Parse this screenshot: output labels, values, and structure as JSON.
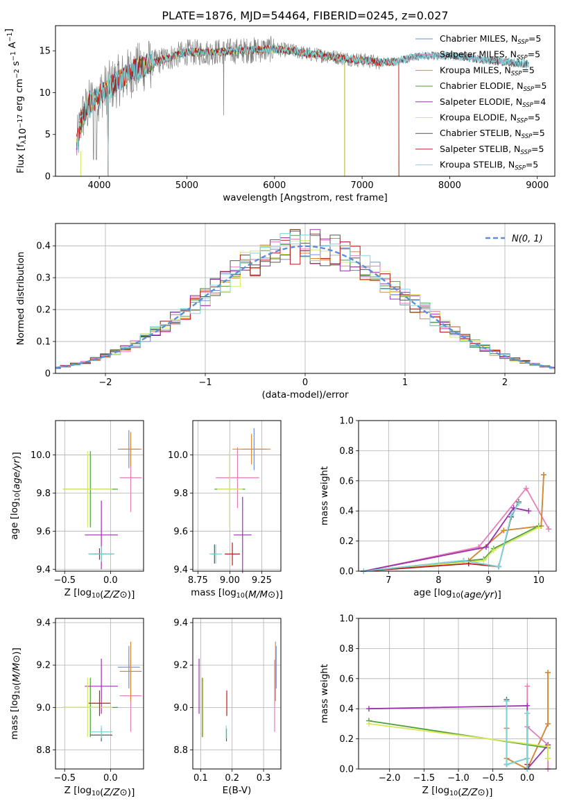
{
  "figure_title": "PLATE=1876, MJD=54464, FIBERID=0245, z=0.027",
  "colors": {
    "Chabrier MILES": "#6f8fd8",
    "Salpeter MILES": "#e87db6",
    "Kroupa MILES": "#d98a2e",
    "Chabrier ELODIE": "#4f9e3a",
    "Salpeter ELODIE": "#9b2fae",
    "Kroupa ELODIE": "#d7e85a",
    "Chabrier STELIB": "#555555",
    "Salpeter STELIB": "#c01818",
    "Kroupa STELIB": "#7fd6d8",
    "gaussian": "#5b8fd9"
  },
  "chart_data": [
    {
      "id": "spectrum",
      "type": "line",
      "xlabel": "wavelength [Angstrom, rest frame]",
      "ylabel": "Flux [f_λ10^-17 erg cm^-2 s^-1 A^-1]",
      "xlim": [
        3500,
        9200
      ],
      "ylim": [
        0,
        18
      ],
      "xticks": [
        4000,
        5000,
        6000,
        7000,
        8000,
        9000
      ],
      "yticks": [
        0,
        5,
        10,
        15
      ],
      "grid": false,
      "legend_position": "top-right",
      "legend": [
        {
          "label": "Chabrier MILES",
          "nssp": "5"
        },
        {
          "label": "Salpeter MILES",
          "nssp": "5"
        },
        {
          "label": "Kroupa MILES",
          "nssp": "5"
        },
        {
          "label": "Chabrier ELODIE",
          "nssp": "5"
        },
        {
          "label": "Salpeter ELODIE",
          "nssp": "4"
        },
        {
          "label": "Kroupa ELODIE",
          "nssp": "5"
        },
        {
          "label": "Chabrier STELIB",
          "nssp": "5"
        },
        {
          "label": "Salpeter STELIB",
          "nssp": "5"
        },
        {
          "label": "Kroupa STELIB",
          "nssp": "5"
        }
      ],
      "continuum": {
        "x": [
          3740,
          3800,
          3900,
          4000,
          4100,
          4200,
          4400,
          4600,
          4800,
          5000,
          5200,
          5400,
          5600,
          5800,
          6000,
          6200,
          6400,
          6600,
          6800,
          7000,
          7200,
          7400,
          7600,
          7800,
          8000,
          8200,
          8400,
          8600,
          8800,
          8900
        ],
        "y": [
          3.5,
          7.0,
          8.8,
          9.8,
          10.6,
          11.3,
          12.7,
          13.5,
          14.2,
          14.8,
          14.8,
          14.9,
          15.0,
          15.1,
          15.2,
          15.0,
          14.6,
          14.4,
          14.1,
          13.9,
          13.6,
          13.7,
          14.3,
          14.4,
          14.4,
          14.2,
          13.9,
          13.7,
          13.5,
          13.4
        ]
      }
    },
    {
      "id": "residuals",
      "type": "histogram",
      "xlabel": "(data-model)/error",
      "ylabel": "Normed distribution",
      "xlim": [
        -2.5,
        2.5
      ],
      "ylim": [
        0,
        0.47
      ],
      "xticks": [
        -2,
        -1,
        0,
        1,
        2
      ],
      "yticks": [
        0.0,
        0.1,
        0.2,
        0.3,
        0.4
      ],
      "grid": true,
      "legend_position": "top-right",
      "legend_label": "N(0,1)",
      "bin_width": 0.1
    },
    {
      "id": "age_vs_Z",
      "type": "errorbar",
      "xlabel": "Z [log10(Z/Z⊙)]",
      "ylabel": "age  [log10(age/yr)]",
      "xlim": [
        -0.6,
        0.36
      ],
      "ylim": [
        9.39,
        10.18
      ],
      "xticks": [
        -0.5,
        0.0
      ],
      "yticks": [
        9.4,
        9.6,
        9.8,
        10.0
      ],
      "grid": true,
      "points": [
        {
          "model": "Chabrier MILES",
          "x": 0.2,
          "y": 10.03,
          "xerr": 0.12,
          "yerr": 0.1
        },
        {
          "model": "Salpeter MILES",
          "x": 0.22,
          "y": 9.88,
          "xerr": 0.12,
          "yerr": 0.18
        },
        {
          "model": "Kroupa MILES",
          "x": 0.22,
          "y": 10.03,
          "xerr": 0.12,
          "yerr": 0.09
        },
        {
          "model": "Chabrier ELODIE",
          "x": -0.22,
          "y": 9.82,
          "xerr": 0.3,
          "yerr": 0.2
        },
        {
          "model": "Salpeter ELODIE",
          "x": -0.1,
          "y": 9.58,
          "xerr": 0.18,
          "yerr": 0.18
        },
        {
          "model": "Kroupa ELODIE",
          "x": -0.25,
          "y": 9.82,
          "xerr": 0.27,
          "yerr": 0.2
        },
        {
          "model": "Chabrier STELIB",
          "x": -0.1,
          "y": 9.48,
          "xerr": 0.14,
          "yerr": 0.04
        },
        {
          "model": "Salpeter STELIB",
          "x": -0.12,
          "y": 9.48,
          "xerr": 0.07,
          "yerr": 0.03
        },
        {
          "model": "Kroupa STELIB",
          "x": -0.1,
          "y": 9.48,
          "xerr": 0.14,
          "yerr": 0.04
        }
      ]
    },
    {
      "id": "age_vs_mass",
      "type": "errorbar",
      "xlabel": "mass [log10(M/M⊙)]",
      "ylabel": "",
      "xlim": [
        8.71,
        9.4
      ],
      "ylim": [
        9.39,
        10.18
      ],
      "xticks": [
        8.75,
        9.0,
        9.25
      ],
      "yticks": [
        9.4,
        9.6,
        9.8,
        10.0
      ],
      "grid": true,
      "points": [
        {
          "model": "Chabrier MILES",
          "x": 9.19,
          "y": 10.03,
          "xerr": 0.1,
          "yerr": 0.11
        },
        {
          "model": "Salpeter MILES",
          "x": 9.06,
          "y": 9.88,
          "xerr": 0.17,
          "yerr": 0.16
        },
        {
          "model": "Kroupa MILES",
          "x": 9.17,
          "y": 10.03,
          "xerr": 0.15,
          "yerr": 0.08
        },
        {
          "model": "Chabrier ELODIE",
          "x": 9.0,
          "y": 9.82,
          "xerr": 0.12,
          "yerr": 0.2
        },
        {
          "model": "Salpeter ELODIE",
          "x": 9.1,
          "y": 9.58,
          "xerr": 0.07,
          "yerr": 0.2
        },
        {
          "model": "Kroupa ELODIE",
          "x": 9.0,
          "y": 9.82,
          "xerr": 0.1,
          "yerr": 0.2
        },
        {
          "model": "Chabrier STELIB",
          "x": 8.88,
          "y": 9.48,
          "xerr": 0.02,
          "yerr": 0.05
        },
        {
          "model": "Salpeter STELIB",
          "x": 9.02,
          "y": 9.48,
          "xerr": 0.06,
          "yerr": 0.06
        },
        {
          "model": "Kroupa STELIB",
          "x": 8.89,
          "y": 9.48,
          "xerr": 0.05,
          "yerr": 0.05
        }
      ]
    },
    {
      "id": "weight_vs_age",
      "type": "line",
      "xlabel": "age  [log10(age/yr)]",
      "ylabel": "mass weight",
      "xlim": [
        6.4,
        10.35
      ],
      "ylim": [
        0,
        1.0
      ],
      "xticks": [
        7,
        8,
        9,
        10
      ],
      "yticks": [
        0.0,
        0.2,
        0.4,
        0.6,
        0.8,
        1.0
      ],
      "grid": true,
      "series": [
        {
          "model": "Chabrier MILES",
          "x": [
            6.5,
            8.6,
            9.3,
            10.05,
            10.1
          ],
          "y": [
            0.0,
            0.07,
            0.27,
            0.3,
            0.64
          ]
        },
        {
          "model": "Salpeter MILES",
          "x": [
            6.5,
            8.8,
            9.75,
            10.2
          ],
          "y": [
            0.0,
            0.16,
            0.55,
            0.28
          ]
        },
        {
          "model": "Kroupa MILES",
          "x": [
            6.5,
            8.6,
            9.3,
            10.05,
            10.1
          ],
          "y": [
            0.0,
            0.07,
            0.27,
            0.3,
            0.64
          ]
        },
        {
          "model": "Chabrier ELODIE",
          "x": [
            6.5,
            8.9,
            9.1,
            10.0
          ],
          "y": [
            0.0,
            0.08,
            0.15,
            0.3
          ]
        },
        {
          "model": "Salpeter ELODIE",
          "x": [
            6.5,
            8.95,
            9.5,
            9.8
          ],
          "y": [
            0.0,
            0.16,
            0.42,
            0.4
          ]
        },
        {
          "model": "Kroupa ELODIE",
          "x": [
            6.5,
            8.9,
            9.1,
            10.0
          ],
          "y": [
            0.0,
            0.07,
            0.14,
            0.29
          ]
        },
        {
          "model": "Chabrier STELIB",
          "x": [
            6.5,
            8.5,
            9.2,
            9.45,
            9.6
          ],
          "y": [
            0.0,
            0.07,
            0.03,
            0.36,
            0.46
          ]
        },
        {
          "model": "Salpeter STELIB",
          "x": [
            6.5,
            8.6,
            9.2
          ],
          "y": [
            0.0,
            0.05,
            0.03
          ]
        },
        {
          "model": "Kroupa STELIB",
          "x": [
            6.5,
            8.5,
            9.2,
            9.45,
            9.6
          ],
          "y": [
            0.0,
            0.07,
            0.03,
            0.37,
            0.45
          ]
        }
      ]
    },
    {
      "id": "mass_vs_Z",
      "type": "errorbar",
      "xlabel": "Z [log10(Z/Z⊙)]",
      "ylabel": "mass [log10(M/M⊙)]",
      "xlim": [
        -0.6,
        0.36
      ],
      "ylim": [
        8.71,
        9.42
      ],
      "xticks": [
        -0.5,
        0.0
      ],
      "yticks": [
        8.8,
        9.0,
        9.2,
        9.4
      ],
      "grid": true,
      "points": [
        {
          "model": "Chabrier MILES",
          "x": 0.2,
          "y": 9.19,
          "xerr": 0.12,
          "yerr": 0.1
        },
        {
          "model": "Salpeter MILES",
          "x": 0.22,
          "y": 9.055,
          "xerr": 0.12,
          "yerr": 0.17
        },
        {
          "model": "Kroupa MILES",
          "x": 0.22,
          "y": 9.17,
          "xerr": 0.12,
          "yerr": 0.14
        },
        {
          "model": "Chabrier ELODIE",
          "x": -0.22,
          "y": 9.0,
          "xerr": 0.3,
          "yerr": 0.14
        },
        {
          "model": "Salpeter ELODIE",
          "x": -0.1,
          "y": 9.1,
          "xerr": 0.18,
          "yerr": 0.13
        },
        {
          "model": "Kroupa ELODIE",
          "x": -0.25,
          "y": 9.0,
          "xerr": 0.27,
          "yerr": 0.14
        },
        {
          "model": "Chabrier STELIB",
          "x": -0.1,
          "y": 8.87,
          "xerr": 0.12,
          "yerr": 0.03
        },
        {
          "model": "Salpeter STELIB",
          "x": -0.12,
          "y": 9.02,
          "xerr": 0.12,
          "yerr": 0.06
        },
        {
          "model": "Kroupa STELIB",
          "x": -0.1,
          "y": 8.885,
          "xerr": 0.12,
          "yerr": 0.03
        }
      ]
    },
    {
      "id": "mass_vs_ebv",
      "type": "errorbar",
      "xlabel": "E(B-V)",
      "ylabel": "",
      "xlim": [
        0.075,
        0.355
      ],
      "ylim": [
        8.71,
        9.42
      ],
      "xticks": [
        0.1,
        0.2,
        0.3
      ],
      "yticks": [
        8.8,
        9.0,
        9.2,
        9.4
      ],
      "grid": true,
      "points": [
        {
          "model": "Chabrier MILES",
          "x": 0.34,
          "y": 9.19,
          "xerr": 0.0,
          "yerr": 0.1
        },
        {
          "model": "Salpeter MILES",
          "x": 0.335,
          "y": 9.055,
          "xerr": 0.0,
          "yerr": 0.17
        },
        {
          "model": "Kroupa MILES",
          "x": 0.338,
          "y": 9.17,
          "xerr": 0.0,
          "yerr": 0.14
        },
        {
          "model": "Chabrier ELODIE",
          "x": 0.105,
          "y": 9.0,
          "xerr": 0.0,
          "yerr": 0.14
        },
        {
          "model": "Salpeter ELODIE",
          "x": 0.095,
          "y": 9.1,
          "xerr": 0.0,
          "yerr": 0.13
        },
        {
          "model": "Kroupa ELODIE",
          "x": 0.108,
          "y": 9.0,
          "xerr": 0.0,
          "yerr": 0.14
        },
        {
          "model": "Chabrier STELIB",
          "x": 0.182,
          "y": 8.87,
          "xerr": 0.0,
          "yerr": 0.03
        },
        {
          "model": "Salpeter STELIB",
          "x": 0.183,
          "y": 9.02,
          "xerr": 0.0,
          "yerr": 0.06
        },
        {
          "model": "Kroupa STELIB",
          "x": 0.181,
          "y": 8.885,
          "xerr": 0.0,
          "yerr": 0.03
        }
      ]
    },
    {
      "id": "weight_vs_Z",
      "type": "line",
      "xlabel": "Z [log10(Z/Z⊙)]",
      "ylabel": "mass weight",
      "xlim": [
        -2.45,
        0.42
      ],
      "ylim": [
        0,
        1.0
      ],
      "xticks": [
        -2.0,
        -1.5,
        -1.0,
        -0.5,
        0.0
      ],
      "yticks": [
        0.0,
        0.2,
        0.4,
        0.6,
        0.8,
        1.0
      ],
      "grid": true,
      "series": [
        {
          "model": "Chabrier MILES",
          "x": [
            -0.3,
            -0.3,
            0.0,
            0.0,
            0.3,
            0.3
          ],
          "y": [
            0.27,
            0.07,
            0.0,
            0.0,
            0.3,
            0.64
          ]
        },
        {
          "model": "Salpeter MILES",
          "x": [
            0.0,
            0.0,
            0.0,
            0.3,
            0.3
          ],
          "y": [
            0.0,
            0.55,
            0.28,
            0.16,
            0.0
          ]
        },
        {
          "model": "Kroupa MILES",
          "x": [
            -0.3,
            -0.3,
            0.0,
            0.0,
            0.3,
            0.3
          ],
          "y": [
            0.27,
            0.07,
            0.0,
            0.0,
            0.3,
            0.64
          ]
        },
        {
          "model": "Chabrier ELODIE",
          "x": [
            -2.3,
            0.3,
            0.3
          ],
          "y": [
            0.32,
            0.14,
            0.07
          ]
        },
        {
          "model": "Salpeter ELODIE",
          "x": [
            -2.3,
            0.0,
            0.0,
            0.3
          ],
          "y": [
            0.4,
            0.42,
            0.0,
            0.16
          ]
        },
        {
          "model": "Kroupa ELODIE",
          "x": [
            -2.3,
            0.3,
            0.3
          ],
          "y": [
            0.3,
            0.15,
            0.07
          ]
        },
        {
          "model": "Chabrier STELIB",
          "x": [
            -0.3,
            -0.3,
            -0.3,
            0.0,
            0.0,
            0.0
          ],
          "y": [
            0.46,
            0.03,
            0.03,
            0.07,
            0.37,
            0.0
          ]
        },
        {
          "model": "Salpeter STELIB",
          "x": [
            0.0,
            0.0
          ],
          "y": [
            0.0,
            0.03
          ]
        },
        {
          "model": "Kroupa STELIB",
          "x": [
            -0.3,
            -0.3,
            0.0,
            0.0,
            0.0
          ],
          "y": [
            0.45,
            0.03,
            0.07,
            0.37,
            0.0
          ]
        }
      ]
    }
  ]
}
